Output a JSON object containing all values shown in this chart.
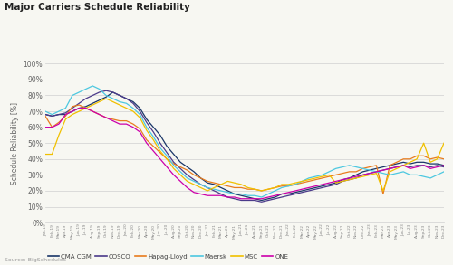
{
  "title": "Major Carriers Schedule Reliability",
  "ylabel": "Schedule Reliability [%]",
  "source": "Source: BigSchedules",
  "ylim": [
    0,
    100
  ],
  "yticks": [
    0,
    10,
    20,
    30,
    40,
    50,
    60,
    70,
    80,
    90,
    100
  ],
  "carriers": [
    "CMA CGM",
    "COSCO",
    "Hapag-Lloyd",
    "Maersk",
    "MSC",
    "ONE"
  ],
  "colors": [
    "#1a3668",
    "#4b3a8a",
    "#e87c1e",
    "#4dc8e0",
    "#f0c000",
    "#cc00aa"
  ],
  "bg_color": "#f7f7f2",
  "grid_color": "#d0d0d0",
  "x_labels": [
    "Jan-19",
    "Feb-19",
    "Mar-19",
    "Apr-19",
    "May-19",
    "Jun-19",
    "Jul-19",
    "Aug-19",
    "Sep-19",
    "Oct-19",
    "Nov-19",
    "Dec-19",
    "Jan-20",
    "Feb-20",
    "Mar-20",
    "Apr-20",
    "May-20",
    "Jun-20",
    "Jul-20",
    "Aug-20",
    "Sep-20",
    "Oct-20",
    "Nov-20",
    "Dec-20",
    "Jan-21",
    "Feb-21",
    "Mar-21",
    "Apr-21",
    "May-21",
    "Jun-21",
    "Jul-21",
    "Aug-21",
    "Sep-21",
    "Oct-21",
    "Nov-21",
    "Dec-21",
    "Jan-22",
    "Feb-22",
    "Mar-22",
    "Apr-22",
    "May-22",
    "Jun-22",
    "Jul-22",
    "Aug-22",
    "Sep-22",
    "Oct-22",
    "Nov-22",
    "Dec-22",
    "Jan-23",
    "Feb-23",
    "Mar-23",
    "Apr-23",
    "May-23",
    "Jun-23",
    "Jul-23",
    "Aug-23",
    "Sep-23",
    "Oct-23",
    "Nov-23",
    "Dec-23"
  ],
  "data": {
    "CMA CGM": [
      68,
      67,
      68,
      68,
      70,
      72,
      73,
      75,
      77,
      79,
      82,
      80,
      78,
      76,
      72,
      65,
      60,
      55,
      48,
      43,
      38,
      35,
      32,
      28,
      25,
      24,
      22,
      20,
      18,
      17,
      16,
      15,
      14,
      15,
      16,
      18,
      18,
      19,
      20,
      21,
      22,
      23,
      24,
      25,
      27,
      28,
      30,
      32,
      33,
      34,
      35,
      36,
      37,
      38,
      37,
      38,
      38,
      37,
      37,
      36
    ],
    "COSCO": [
      68,
      67,
      68,
      69,
      72,
      75,
      78,
      80,
      82,
      83,
      82,
      80,
      78,
      75,
      70,
      63,
      57,
      50,
      44,
      38,
      34,
      30,
      27,
      24,
      22,
      20,
      18,
      16,
      15,
      14,
      14,
      14,
      13,
      14,
      15,
      16,
      17,
      18,
      19,
      20,
      21,
      22,
      23,
      24,
      26,
      27,
      28,
      30,
      31,
      32,
      33,
      34,
      35,
      36,
      35,
      36,
      36,
      35,
      36,
      35
    ],
    "Hapag-Lloyd": [
      67,
      60,
      63,
      67,
      73,
      74,
      72,
      70,
      68,
      66,
      65,
      64,
      64,
      62,
      59,
      52,
      48,
      44,
      40,
      37,
      35,
      33,
      30,
      28,
      26,
      25,
      24,
      23,
      22,
      22,
      21,
      21,
      20,
      21,
      22,
      23,
      23,
      24,
      25,
      26,
      27,
      28,
      29,
      30,
      31,
      32,
      32,
      34,
      35,
      36,
      18,
      36,
      38,
      40,
      40,
      42,
      42,
      40,
      41,
      40
    ],
    "Maersk": [
      70,
      68,
      70,
      72,
      80,
      82,
      84,
      86,
      84,
      80,
      78,
      76,
      75,
      72,
      68,
      60,
      54,
      47,
      42,
      36,
      32,
      28,
      26,
      24,
      22,
      21,
      20,
      19,
      18,
      18,
      17,
      17,
      16,
      18,
      20,
      22,
      23,
      24,
      26,
      28,
      29,
      30,
      32,
      34,
      35,
      36,
      35,
      34,
      33,
      32,
      31,
      30,
      31,
      32,
      30,
      30,
      29,
      28,
      30,
      32
    ],
    "MSC": [
      43,
      43,
      55,
      65,
      68,
      70,
      72,
      74,
      76,
      78,
      76,
      74,
      72,
      70,
      66,
      58,
      52,
      45,
      40,
      34,
      30,
      26,
      24,
      22,
      20,
      22,
      24,
      26,
      25,
      24,
      22,
      21,
      20,
      21,
      22,
      24,
      24,
      25,
      26,
      27,
      28,
      29,
      30,
      25,
      26,
      27,
      28,
      29,
      30,
      31,
      20,
      32,
      34,
      36,
      38,
      40,
      50,
      38,
      40,
      50
    ],
    "ONE": [
      60,
      60,
      62,
      68,
      70,
      72,
      72,
      70,
      68,
      66,
      64,
      62,
      62,
      60,
      57,
      50,
      45,
      40,
      35,
      30,
      26,
      22,
      19,
      18,
      17,
      17,
      17,
      16,
      16,
      15,
      15,
      15,
      15,
      16,
      17,
      18,
      19,
      20,
      21,
      22,
      23,
      24,
      25,
      26,
      27,
      28,
      29,
      30,
      31,
      32,
      33,
      34,
      35,
      36,
      34,
      35,
      36,
      34,
      35,
      36
    ]
  }
}
